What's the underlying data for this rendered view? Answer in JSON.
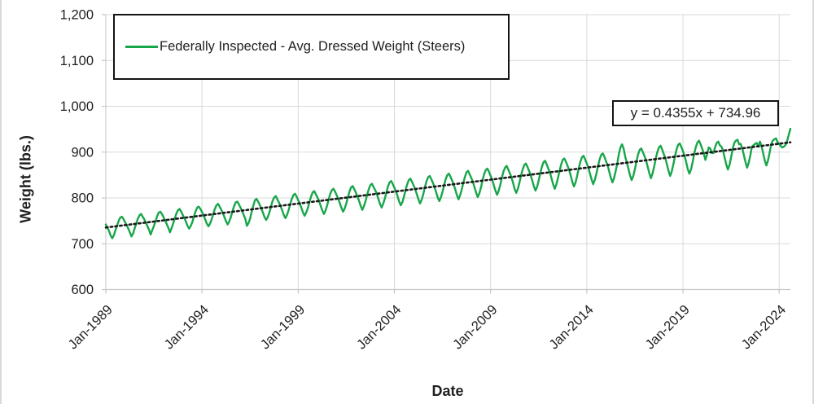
{
  "chart_data": {
    "type": "line",
    "title": "",
    "xlabel": "Date",
    "ylabel": "Weight (lbs.)",
    "ylim": [
      600,
      1200
    ],
    "grid": true,
    "legend_position": "top-left",
    "colors": {
      "series_green": "#17a64a",
      "trendline_black": "#1a1a1a",
      "gridline_gray": "#d9d9d9",
      "axis_gray": "#c6c6c6",
      "text_dark": "#1f1f1f"
    },
    "y_ticks": [
      {
        "v": 600,
        "label": "600"
      },
      {
        "v": 700,
        "label": "700"
      },
      {
        "v": 800,
        "label": "800"
      },
      {
        "v": 900,
        "label": "900"
      },
      {
        "v": 1000,
        "label": "1,000"
      },
      {
        "v": 1100,
        "label": "1,100"
      },
      {
        "v": 1200,
        "label": "1,200"
      }
    ],
    "x_ticks": [
      {
        "t": 0,
        "label": "Jan-1989"
      },
      {
        "t": 60,
        "label": "Jan-1994"
      },
      {
        "t": 120,
        "label": "Jan-1999"
      },
      {
        "t": 180,
        "label": "Jan-2004"
      },
      {
        "t": 240,
        "label": "Jan-2009"
      },
      {
        "t": 300,
        "label": "Jan-2014"
      },
      {
        "t": 360,
        "label": "Jan-2019"
      },
      {
        "t": 420,
        "label": "Jan-2024"
      }
    ],
    "series": [
      {
        "name": "Federally Inspected - Avg. Dressed Weight (Steers)",
        "frequency": "monthly",
        "start_year": 1989,
        "start_month": "Jan",
        "values_by_year": [
          [
            742,
            735,
            728,
            718,
            712,
            718,
            729,
            739,
            750,
            757,
            759,
            754
          ],
          [
            747,
            741,
            733,
            725,
            716,
            722,
            734,
            744,
            755,
            762,
            765,
            759
          ],
          [
            753,
            746,
            738,
            730,
            720,
            730,
            739,
            749,
            760,
            768,
            770,
            765
          ],
          [
            758,
            751,
            743,
            735,
            725,
            734,
            744,
            755,
            766,
            773,
            776,
            770
          ],
          [
            763,
            756,
            748,
            739,
            733,
            739,
            748,
            760,
            771,
            779,
            781,
            776
          ],
          [
            769,
            762,
            753,
            744,
            738,
            744,
            753,
            765,
            776,
            784,
            787,
            781
          ],
          [
            774,
            767,
            758,
            749,
            742,
            749,
            758,
            771,
            782,
            790,
            792,
            786
          ],
          [
            779,
            772,
            763,
            754,
            739,
            745,
            755,
            770,
            783,
            795,
            798,
            792
          ],
          [
            785,
            777,
            768,
            758,
            752,
            758,
            768,
            781,
            793,
            801,
            804,
            797
          ],
          [
            790,
            782,
            773,
            763,
            756,
            763,
            773,
            786,
            798,
            806,
            809,
            803
          ],
          [
            795,
            788,
            778,
            768,
            761,
            768,
            778,
            791,
            803,
            812,
            815,
            808
          ],
          [
            801,
            793,
            783,
            773,
            765,
            772,
            783,
            797,
            809,
            817,
            820,
            814
          ],
          [
            806,
            798,
            788,
            778,
            770,
            777,
            788,
            802,
            814,
            823,
            826,
            819
          ],
          [
            811,
            803,
            793,
            782,
            774,
            782,
            793,
            807,
            819,
            828,
            831,
            824
          ],
          [
            817,
            809,
            798,
            787,
            779,
            787,
            798,
            812,
            825,
            834,
            837,
            830
          ],
          [
            822,
            814,
            803,
            792,
            784,
            791,
            803,
            818,
            830,
            839,
            842,
            835
          ],
          [
            827,
            819,
            808,
            797,
            788,
            796,
            808,
            823,
            836,
            845,
            848,
            841
          ],
          [
            833,
            824,
            813,
            801,
            793,
            801,
            813,
            828,
            841,
            850,
            853,
            846
          ],
          [
            838,
            829,
            818,
            806,
            797,
            806,
            818,
            833,
            846,
            856,
            859,
            851
          ],
          [
            843,
            835,
            823,
            811,
            802,
            810,
            823,
            839,
            852,
            861,
            864,
            857
          ],
          [
            848,
            840,
            828,
            816,
            807,
            815,
            828,
            844,
            857,
            866,
            870,
            862
          ],
          [
            854,
            845,
            833,
            820,
            811,
            820,
            833,
            849,
            862,
            872,
            875,
            868
          ],
          [
            859,
            850,
            838,
            825,
            816,
            824,
            838,
            854,
            868,
            878,
            881,
            873
          ],
          [
            864,
            856,
            843,
            830,
            820,
            829,
            843,
            859,
            873,
            883,
            886,
            879
          ],
          [
            870,
            861,
            848,
            835,
            825,
            834,
            848,
            865,
            879,
            889,
            892,
            884
          ],
          [
            875,
            866,
            853,
            840,
            830,
            839,
            853,
            870,
            884,
            894,
            897,
            890
          ],
          [
            880,
            871,
            858,
            844,
            834,
            843,
            858,
            875,
            896,
            910,
            917,
            907
          ],
          [
            890,
            877,
            863,
            849,
            839,
            848,
            863,
            880,
            895,
            905,
            908,
            900
          ],
          [
            891,
            882,
            868,
            854,
            843,
            853,
            868,
            886,
            900,
            910,
            914,
            906
          ],
          [
            896,
            887,
            873,
            859,
            848,
            858,
            873,
            891,
            906,
            916,
            919,
            911
          ],
          [
            902,
            892,
            878,
            863,
            853,
            862,
            878,
            896,
            911,
            921,
            925,
            917
          ],
          [
            907,
            897,
            883,
            895,
            910,
            908,
            898,
            898,
            910,
            920,
            923,
            915
          ],
          [
            912,
            903,
            888,
            873,
            862,
            872,
            888,
            907,
            920,
            925,
            927,
            917
          ],
          [
            918,
            908,
            893,
            878,
            866,
            877,
            893,
            912,
            915,
            918,
            920,
            912
          ],
          [
            923,
            913,
            898,
            882,
            871,
            881,
            898,
            917,
            925,
            928,
            930,
            922
          ],
          [
            918,
            913,
            910,
            912,
            916,
            925,
            938,
            951
          ]
        ]
      }
    ],
    "trendline": {
      "label": "y = 0.4355x + 734.96",
      "slope": 0.4355,
      "intercept": 734.96,
      "style": "dotted"
    }
  }
}
